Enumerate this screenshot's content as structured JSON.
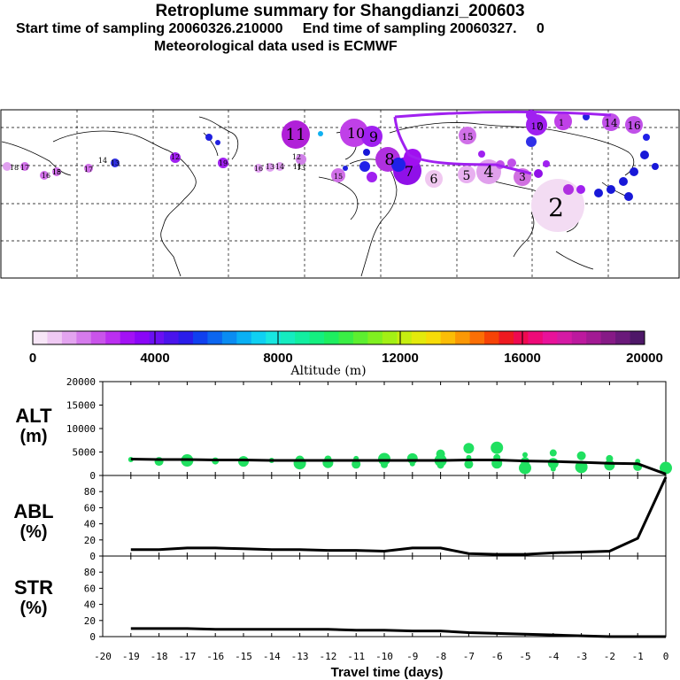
{
  "header": {
    "title": "Retroplume summary for Shangdianzi_200603",
    "subtitle_start": "Start time of sampling 20060326.210000",
    "subtitle_end": "End time of sampling 20060327.",
    "subtitle_tail": "0",
    "met_line": "Meteorological data used is ECMWF"
  },
  "colorbar": {
    "label": "Altitude (m)",
    "ticks": [
      "0",
      "4000",
      "8000",
      "12000",
      "16000",
      "20000"
    ],
    "colors": [
      "#f7e6f7",
      "#efc9f3",
      "#e3a4ef",
      "#d57bec",
      "#c954ea",
      "#bb2ff0",
      "#a311f5",
      "#8a06f7",
      "#6b10f2",
      "#4a14ec",
      "#2a1dea",
      "#1040ef",
      "#0c66f0",
      "#0a8cf2",
      "#09b0f4",
      "#0fd0f2",
      "#18e6e0",
      "#15ecc0",
      "#12eea0",
      "#14ef80",
      "#1eee60",
      "#3aee45",
      "#5def30",
      "#80f020",
      "#a3f015",
      "#c6ee10",
      "#e4ea0c",
      "#f7dc08",
      "#fbbd06",
      "#fb9805",
      "#fb6f05",
      "#f64306",
      "#ee1a20",
      "#ee0a50",
      "#ee0a78",
      "#e8129a",
      "#d41aa4",
      "#bc199e",
      "#a21a93",
      "#861a86",
      "#6a197a",
      "#4e1868"
    ]
  },
  "map": {
    "labels": [
      {
        "t": "11"
      },
      {
        "t": "10"
      },
      {
        "t": "9"
      },
      {
        "t": "8"
      },
      {
        "t": "7"
      },
      {
        "t": "6"
      },
      {
        "t": "5"
      },
      {
        "t": "4"
      },
      {
        "t": "3"
      },
      {
        "t": "2"
      },
      {
        "t": "0"
      },
      {
        "t": "1"
      },
      {
        "t": "18"
      },
      {
        "t": "17"
      },
      {
        "t": "16"
      },
      {
        "t": "15"
      },
      {
        "t": "14"
      },
      {
        "t": "13"
      },
      {
        "t": "12"
      },
      {
        "t": "19"
      },
      {
        "t": "17"
      },
      {
        "t": "14"
      },
      {
        "t": "16"
      },
      {
        "t": "15"
      },
      {
        "t": "12"
      },
      {
        "t": "11"
      },
      {
        "t": "13"
      },
      {
        "t": "14"
      },
      {
        "t": "13"
      },
      {
        "t": "16"
      },
      {
        "t": "17"
      },
      {
        "t": "18"
      },
      {
        "t": "15"
      }
    ]
  },
  "panels": {
    "alt_label": "ALT",
    "alt_unit": "(m)",
    "abl_label": "ABL",
    "abl_unit": "(%)",
    "str_label": "STR",
    "str_unit": "(%)",
    "x_title": "Travel time (days)"
  },
  "chart_data": [
    {
      "type": "line",
      "title": "ALT",
      "ylabel": "(m)",
      "ylim": [
        0,
        20000
      ],
      "yticks": [
        "20000",
        "15000",
        "10000",
        "5000",
        "0"
      ],
      "x": [
        -19,
        -18,
        -17,
        -16,
        -15,
        -14,
        -13,
        -12,
        -11,
        -10,
        -9,
        -8,
        -7,
        -6,
        -5,
        -4,
        -3,
        -2,
        -1,
        0
      ],
      "xticks": [
        "-20",
        "-19",
        "-18",
        "-17",
        "-16",
        "-15",
        "-14",
        "-13",
        "-12",
        "-11",
        "-10",
        "-9",
        "-8",
        "-7",
        "-6",
        "-5",
        "-4",
        "-3",
        "-2",
        "-1",
        "0"
      ],
      "series": [
        {
          "name": "median altitude",
          "values": [
            3500,
            3400,
            3400,
            3300,
            3300,
            3200,
            3200,
            3200,
            3200,
            3200,
            3200,
            3200,
            3300,
            3300,
            3100,
            3000,
            2800,
            2600,
            2500,
            300
          ]
        }
      ],
      "dots": [
        {
          "x": -19,
          "y": 3400
        },
        {
          "x": -18,
          "y": 3000
        },
        {
          "x": -17,
          "y": 3200
        },
        {
          "x": -16,
          "y": 3100
        },
        {
          "x": -15,
          "y": 3000
        },
        {
          "x": -14,
          "y": 3200
        },
        {
          "x": -13,
          "y": 3300
        },
        {
          "x": -13,
          "y": 2600
        },
        {
          "x": -12,
          "y": 3500
        },
        {
          "x": -12,
          "y": 2700
        },
        {
          "x": -11,
          "y": 3600
        },
        {
          "x": -11,
          "y": 2400
        },
        {
          "x": -10,
          "y": 3500
        },
        {
          "x": -10,
          "y": 2300
        },
        {
          "x": -9,
          "y": 3600
        },
        {
          "x": -9,
          "y": 2500
        },
        {
          "x": -8,
          "y": 4600
        },
        {
          "x": -8,
          "y": 3200
        },
        {
          "x": -8,
          "y": 2200
        },
        {
          "x": -7,
          "y": 5800
        },
        {
          "x": -7,
          "y": 3800
        },
        {
          "x": -7,
          "y": 2400
        },
        {
          "x": -6,
          "y": 5900
        },
        {
          "x": -6,
          "y": 3800
        },
        {
          "x": -6,
          "y": 2600
        },
        {
          "x": -5,
          "y": 4400
        },
        {
          "x": -5,
          "y": 3000
        },
        {
          "x": -5,
          "y": 1600
        },
        {
          "x": -4,
          "y": 4800
        },
        {
          "x": -4,
          "y": 2600
        },
        {
          "x": -4,
          "y": 1400
        },
        {
          "x": -3,
          "y": 4200
        },
        {
          "x": -3,
          "y": 1800
        },
        {
          "x": -2,
          "y": 3600
        },
        {
          "x": -2,
          "y": 2200
        },
        {
          "x": -1,
          "y": 3000
        },
        {
          "x": -1,
          "y": 1900
        },
        {
          "x": 0,
          "y": 1600
        }
      ]
    },
    {
      "type": "line",
      "title": "ABL",
      "ylabel": "(%)",
      "ylim": [
        0,
        100
      ],
      "yticks": [
        "80",
        "60",
        "40",
        "20",
        "0"
      ],
      "x": [
        -19,
        -18,
        -17,
        -16,
        -15,
        -14,
        -13,
        -12,
        -11,
        -10,
        -9,
        -8,
        -7,
        -6,
        -5,
        -4,
        -3,
        -2,
        -1,
        0
      ],
      "series": [
        {
          "name": "ABL fraction",
          "values": [
            8,
            8,
            10,
            10,
            9,
            8,
            8,
            7,
            7,
            6,
            10,
            10,
            3,
            2,
            2,
            4,
            5,
            6,
            22,
            98
          ]
        }
      ]
    },
    {
      "type": "line",
      "title": "STR",
      "ylabel": "(%)",
      "ylim": [
        0,
        100
      ],
      "yticks": [
        "80",
        "60",
        "40",
        "20",
        "0"
      ],
      "x": [
        -19,
        -18,
        -17,
        -16,
        -15,
        -14,
        -13,
        -12,
        -11,
        -10,
        -9,
        -8,
        -7,
        -6,
        -5,
        -4,
        -3,
        -2,
        -1,
        0
      ],
      "series": [
        {
          "name": "stratospheric fraction",
          "values": [
            10,
            10,
            10,
            9,
            9,
            9,
            9,
            9,
            8,
            8,
            7,
            7,
            5,
            4,
            3,
            2,
            1,
            0,
            0,
            0
          ]
        }
      ]
    }
  ]
}
